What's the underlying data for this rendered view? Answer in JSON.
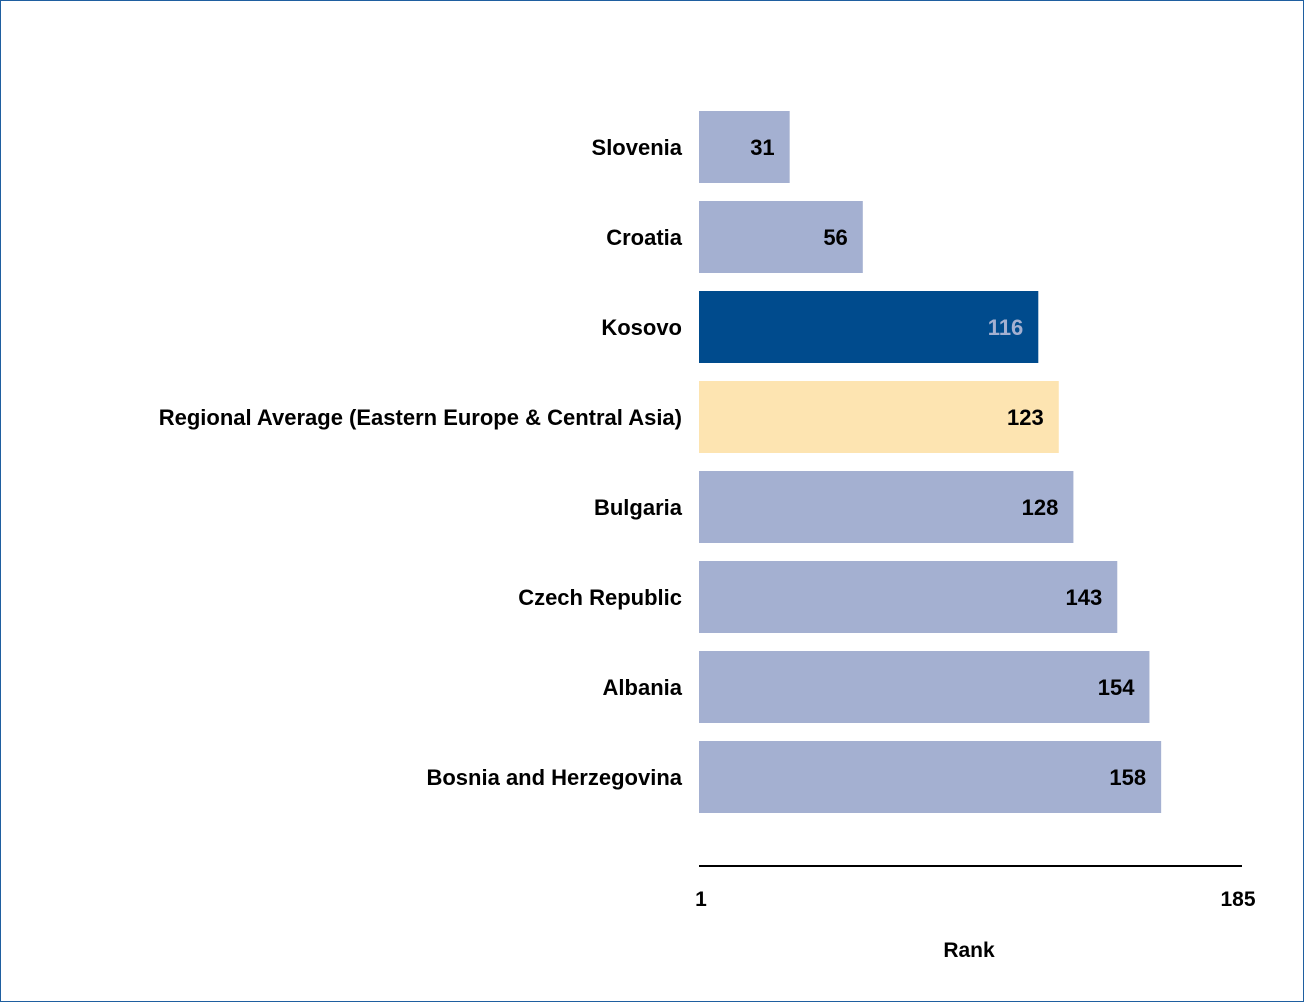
{
  "chart_data": {
    "type": "bar",
    "orientation": "horizontal",
    "categories": [
      "Slovenia",
      "Croatia",
      "Kosovo",
      "Regional Average (Eastern Europe & Central Asia)",
      "Bulgaria",
      "Czech Republic",
      "Albania",
      "Bosnia and Herzegovina"
    ],
    "values": [
      31,
      56,
      116,
      123,
      128,
      143,
      154,
      158
    ],
    "bar_colors": [
      "#a4b0d1",
      "#a4b0d1",
      "#004b8d",
      "#fde4b1",
      "#a4b0d1",
      "#a4b0d1",
      "#a4b0d1",
      "#a4b0d1"
    ],
    "value_label_colors": [
      "#000000",
      "#000000",
      "#a4b0d1",
      "#000000",
      "#000000",
      "#000000",
      "#000000",
      "#000000"
    ],
    "xlim": [
      1,
      185
    ],
    "xticks": [
      "1",
      "185"
    ],
    "xlabel": "Rank",
    "grid": false,
    "legend": "none"
  },
  "colors": {
    "frame_border": "#1f5fa0",
    "axis_line": "#000000",
    "default_bar": "#a4b0d1",
    "highlight_bar": "#004b8d",
    "regional_bar": "#fde4b1"
  }
}
